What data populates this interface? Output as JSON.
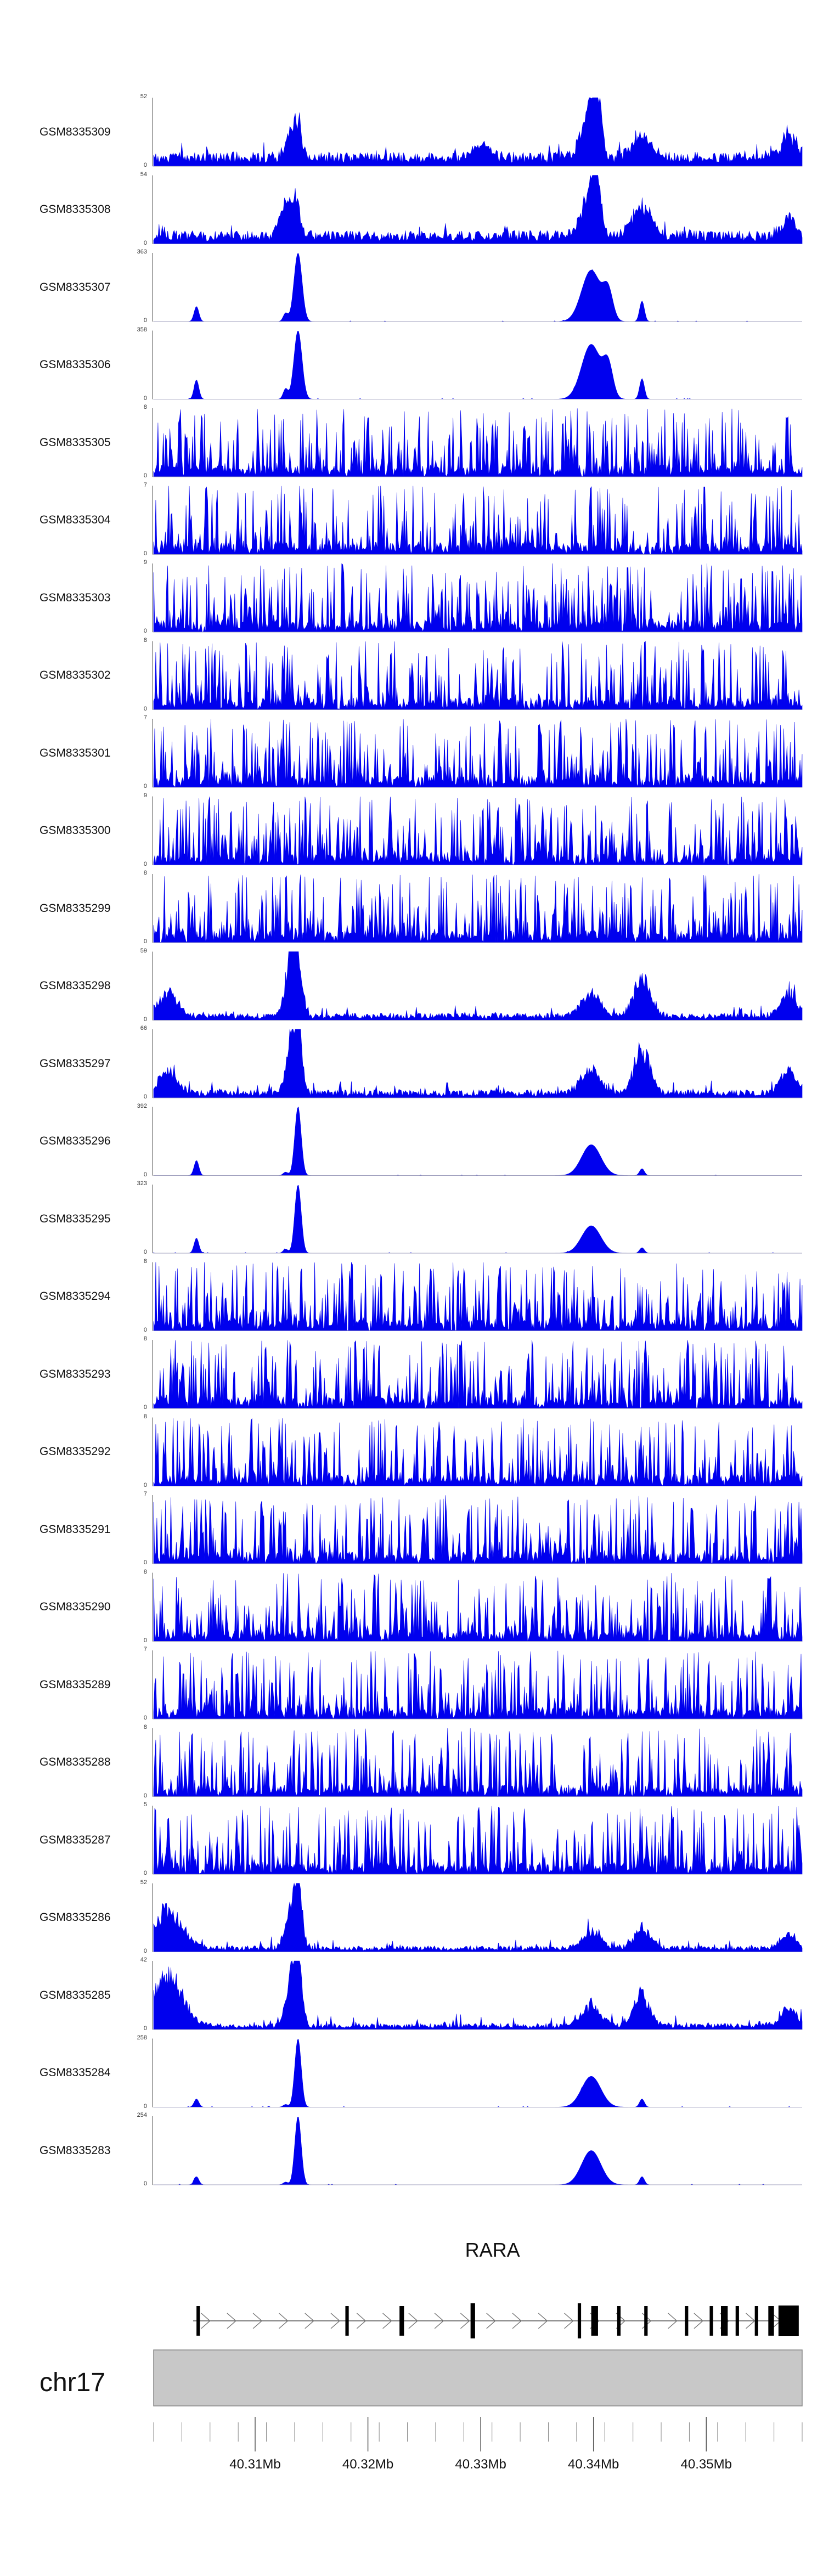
{
  "chart_data": {
    "type": "area",
    "title": "",
    "chromosome": "chr17",
    "x_unit": "Mb",
    "xlim": [
      40.301,
      40.3585
    ],
    "color": "#0000ee",
    "tick_labels": [
      "40.31Mb",
      "40.32Mb",
      "40.33Mb",
      "40.34Mb",
      "40.35Mb"
    ],
    "tick_values": [
      40.31,
      40.32,
      40.33,
      40.34,
      40.35
    ],
    "gene": {
      "name": "RARA",
      "start": 40.3045,
      "end": 40.358,
      "strand": "+",
      "exons": [
        {
          "start": 40.3048,
          "end": 40.3051
        },
        {
          "start": 40.318,
          "end": 40.3183
        },
        {
          "start": 40.3228,
          "end": 40.3232
        },
        {
          "start": 40.3291,
          "end": 40.3295
        },
        {
          "start": 40.3386,
          "end": 40.3389
        },
        {
          "start": 40.3398,
          "end": 40.3404
        },
        {
          "start": 40.3421,
          "end": 40.3424
        },
        {
          "start": 40.3445,
          "end": 40.3448
        },
        {
          "start": 40.3481,
          "end": 40.3484
        },
        {
          "start": 40.3503,
          "end": 40.3506
        },
        {
          "start": 40.3513,
          "end": 40.3519
        },
        {
          "start": 40.3526,
          "end": 40.3529
        },
        {
          "start": 40.3543,
          "end": 40.3546
        },
        {
          "start": 40.3555,
          "end": 40.356
        },
        {
          "start": 40.3564,
          "end": 40.3582
        }
      ]
    },
    "series": [
      {
        "name": "GSM8335309",
        "ymax": 52,
        "ymin": 0,
        "pattern": "broad",
        "peaks": [
          [
            40.3129,
            0.25,
            0.0005
          ],
          [
            40.3137,
            0.55,
            0.0006
          ],
          [
            40.3303,
            0.2,
            0.001
          ],
          [
            40.3395,
            0.55,
            0.001
          ],
          [
            40.3402,
            0.95,
            0.0006
          ],
          [
            40.3443,
            0.35,
            0.0012
          ],
          [
            40.3573,
            0.35,
            0.001
          ]
        ],
        "base": 0.14
      },
      {
        "name": "GSM8335308",
        "ymax": 54,
        "ymin": 0,
        "pattern": "broad",
        "peaks": [
          [
            40.3125,
            0.45,
            0.0006
          ],
          [
            40.3135,
            0.6,
            0.0006
          ],
          [
            40.3395,
            0.5,
            0.001
          ],
          [
            40.3402,
            0.85,
            0.0006
          ],
          [
            40.3443,
            0.45,
            0.0012
          ],
          [
            40.3573,
            0.25,
            0.001
          ]
        ],
        "base": 0.13
      },
      {
        "name": "GSM8335307",
        "ymax": 363,
        "ymin": 0,
        "pattern": "sharp",
        "peaks": [
          [
            40.3048,
            0.22,
            0.0003
          ],
          [
            40.3127,
            0.12,
            0.0003
          ],
          [
            40.3138,
            1.0,
            0.0005
          ],
          [
            40.3398,
            0.75,
            0.0012
          ],
          [
            40.3413,
            0.4,
            0.0006
          ],
          [
            40.3443,
            0.3,
            0.0003
          ]
        ],
        "base": 0.0
      },
      {
        "name": "GSM8335306",
        "ymax": 358,
        "ymin": 0,
        "pattern": "sharp",
        "peaks": [
          [
            40.3048,
            0.28,
            0.0003
          ],
          [
            40.3127,
            0.15,
            0.0003
          ],
          [
            40.3138,
            1.0,
            0.0005
          ],
          [
            40.3398,
            0.8,
            0.0012
          ],
          [
            40.3413,
            0.45,
            0.0006
          ],
          [
            40.3443,
            0.3,
            0.0003
          ]
        ],
        "base": 0.0
      },
      {
        "name": "GSM8335305",
        "ymax": 8,
        "ymin": 0,
        "pattern": "noise",
        "peaks": [],
        "base": 0.4
      },
      {
        "name": "GSM8335304",
        "ymax": 7,
        "ymin": 0,
        "pattern": "noise",
        "peaks": [],
        "base": 0.4
      },
      {
        "name": "GSM8335303",
        "ymax": 9,
        "ymin": 0,
        "pattern": "noise",
        "peaks": [],
        "base": 0.35
      },
      {
        "name": "GSM8335302",
        "ymax": 8,
        "ymin": 0,
        "pattern": "noise",
        "peaks": [],
        "base": 0.35
      },
      {
        "name": "GSM8335301",
        "ymax": 7,
        "ymin": 0,
        "pattern": "noise",
        "peaks": [],
        "base": 0.35
      },
      {
        "name": "GSM8335300",
        "ymax": 9,
        "ymin": 0,
        "pattern": "noise",
        "peaks": [],
        "base": 0.35
      },
      {
        "name": "GSM8335299",
        "ymax": 8,
        "ymin": 0,
        "pattern": "noise",
        "peaks": [],
        "base": 0.35
      },
      {
        "name": "GSM8335298",
        "ymax": 59,
        "ymin": 0,
        "pattern": "broad",
        "peaks": [
          [
            40.3023,
            0.35,
            0.0012
          ],
          [
            40.3131,
            0.9,
            0.0006
          ],
          [
            40.3138,
            0.8,
            0.0005
          ],
          [
            40.3398,
            0.35,
            0.0012
          ],
          [
            40.3443,
            0.6,
            0.001
          ],
          [
            40.3573,
            0.35,
            0.001
          ]
        ],
        "base": 0.07
      },
      {
        "name": "GSM8335297",
        "ymax": 66,
        "ymin": 0,
        "pattern": "broad",
        "peaks": [
          [
            40.3023,
            0.3,
            0.0012
          ],
          [
            40.3131,
            0.75,
            0.0006
          ],
          [
            40.3138,
            0.95,
            0.0005
          ],
          [
            40.3398,
            0.35,
            0.0012
          ],
          [
            40.3443,
            0.65,
            0.001
          ],
          [
            40.3573,
            0.35,
            0.001
          ]
        ],
        "base": 0.08
      },
      {
        "name": "GSM8335296",
        "ymax": 392,
        "ymin": 0,
        "pattern": "sharp",
        "peaks": [
          [
            40.3048,
            0.22,
            0.0003
          ],
          [
            40.3127,
            0.05,
            0.0003
          ],
          [
            40.3138,
            1.0,
            0.0004
          ],
          [
            40.3398,
            0.45,
            0.0012
          ],
          [
            40.3443,
            0.1,
            0.0003
          ]
        ],
        "base": 0.0
      },
      {
        "name": "GSM8335295",
        "ymax": 323,
        "ymin": 0,
        "pattern": "sharp",
        "peaks": [
          [
            40.3048,
            0.22,
            0.0003
          ],
          [
            40.3127,
            0.06,
            0.0003
          ],
          [
            40.3138,
            1.0,
            0.0004
          ],
          [
            40.3398,
            0.4,
            0.0012
          ],
          [
            40.3443,
            0.08,
            0.0003
          ]
        ],
        "base": 0.0
      },
      {
        "name": "GSM8335294",
        "ymax": 8,
        "ymin": 0,
        "pattern": "noise",
        "peaks": [],
        "base": 0.4
      },
      {
        "name": "GSM8335293",
        "ymax": 8,
        "ymin": 0,
        "pattern": "noise",
        "peaks": [],
        "base": 0.3
      },
      {
        "name": "GSM8335292",
        "ymax": 8,
        "ymin": 0,
        "pattern": "noise",
        "peaks": [],
        "base": 0.35
      },
      {
        "name": "GSM8335291",
        "ymax": 7,
        "ymin": 0,
        "pattern": "noise",
        "peaks": [],
        "base": 0.4
      },
      {
        "name": "GSM8335290",
        "ymax": 8,
        "ymin": 0,
        "pattern": "noise",
        "peaks": [],
        "base": 0.3
      },
      {
        "name": "GSM8335289",
        "ymax": 7,
        "ymin": 0,
        "pattern": "noise",
        "peaks": [],
        "base": 0.3
      },
      {
        "name": "GSM8335288",
        "ymax": 8,
        "ymin": 0,
        "pattern": "noise",
        "peaks": [],
        "base": 0.35
      },
      {
        "name": "GSM8335287",
        "ymax": 5,
        "ymin": 0,
        "pattern": "noise",
        "peaks": [],
        "base": 0.45
      },
      {
        "name": "GSM8335286",
        "ymax": 52,
        "ymin": 0,
        "pattern": "broad",
        "peaks": [
          [
            40.3023,
            0.55,
            0.0018
          ],
          [
            40.3131,
            0.5,
            0.0006
          ],
          [
            40.3138,
            0.95,
            0.0005
          ],
          [
            40.3398,
            0.25,
            0.0012
          ],
          [
            40.3443,
            0.3,
            0.001
          ],
          [
            40.3573,
            0.2,
            0.001
          ]
        ],
        "base": 0.06
      },
      {
        "name": "GSM8335285",
        "ymax": 42,
        "ymin": 0,
        "pattern": "broad",
        "peaks": [
          [
            40.3023,
            0.75,
            0.0018
          ],
          [
            40.3131,
            0.65,
            0.0006
          ],
          [
            40.3138,
            0.95,
            0.0005
          ],
          [
            40.3398,
            0.3,
            0.0012
          ],
          [
            40.3443,
            0.45,
            0.001
          ],
          [
            40.3573,
            0.3,
            0.001
          ]
        ],
        "base": 0.06
      },
      {
        "name": "GSM8335284",
        "ymax": 258,
        "ymin": 0,
        "pattern": "sharp",
        "peaks": [
          [
            40.3048,
            0.12,
            0.0003
          ],
          [
            40.3127,
            0.04,
            0.0003
          ],
          [
            40.3138,
            1.0,
            0.0004
          ],
          [
            40.3398,
            0.45,
            0.0012
          ],
          [
            40.3443,
            0.12,
            0.0003
          ]
        ],
        "base": 0.0
      },
      {
        "name": "GSM8335283",
        "ymax": 254,
        "ymin": 0,
        "pattern": "sharp",
        "peaks": [
          [
            40.3048,
            0.12,
            0.0003
          ],
          [
            40.3127,
            0.04,
            0.0003
          ],
          [
            40.3138,
            1.0,
            0.0004
          ],
          [
            40.3398,
            0.5,
            0.0012
          ],
          [
            40.3443,
            0.12,
            0.0003
          ]
        ],
        "base": 0.0
      }
    ]
  }
}
